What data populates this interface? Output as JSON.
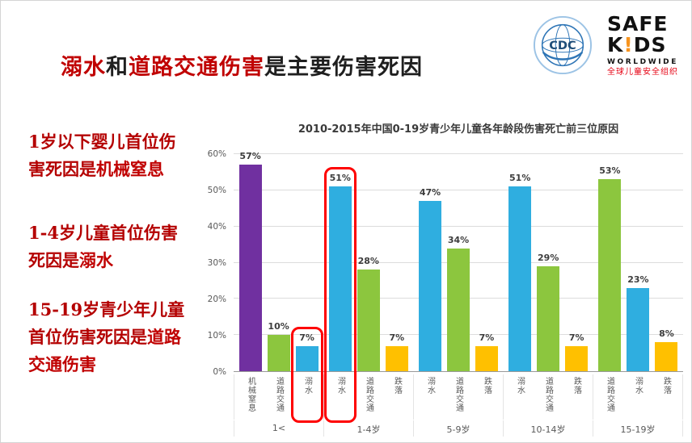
{
  "slide": {
    "title": {
      "p1": "溺水",
      "p2": "和",
      "p3": "道路交通伤害",
      "p4": "是主要伤害死因"
    }
  },
  "logos": {
    "cdc": {
      "label": "CDC"
    },
    "safekids": {
      "safe": "SAFE",
      "kids_k": "K",
      "kids_bang": "!",
      "kids_ds": "DS",
      "worldwide": "WORLDWIDE",
      "chinese": "全球儿童安全组织"
    }
  },
  "sidebar": {
    "notes": [
      {
        "pre": "1岁以下婴儿首位伤\n害死因是",
        "key": "机械窒息"
      },
      {
        "pre": "1-4岁儿童首位伤害\n死因是",
        "key": "溺水"
      },
      {
        "pre": "15-19岁青少年儿童\n首位伤害死因是",
        "key": "道路交通伤害"
      }
    ]
  },
  "chart_data": {
    "type": "bar",
    "title": "2010-2015年中国0-19岁青少年儿童各年龄段伤害死亡前三位原因",
    "xlabel": "",
    "ylabel": "",
    "unit": "%",
    "ylim": [
      0,
      60
    ],
    "yticks": [
      "0%",
      "10%",
      "20%",
      "30%",
      "40%",
      "50%",
      "60%"
    ],
    "grid": true,
    "legend_position": "none",
    "groups": [
      {
        "age": "1<",
        "bars": [
          {
            "label": "机械窒息",
            "value": 57,
            "color": "#7030A0",
            "highlight": false
          },
          {
            "label": "道路交通",
            "value": 10,
            "color": "#8CC63E",
            "highlight": false
          },
          {
            "label": "溺水",
            "value": 7,
            "color": "#2FAEE0",
            "highlight": true
          }
        ]
      },
      {
        "age": "1-4岁",
        "bars": [
          {
            "label": "溺水",
            "value": 51,
            "color": "#2FAEE0",
            "highlight": true
          },
          {
            "label": "道路交通",
            "value": 28,
            "color": "#8CC63E",
            "highlight": false
          },
          {
            "label": "跌落",
            "value": 7,
            "color": "#FFC000",
            "highlight": false
          }
        ]
      },
      {
        "age": "5-9岁",
        "bars": [
          {
            "label": "溺水",
            "value": 47,
            "color": "#2FAEE0",
            "highlight": false
          },
          {
            "label": "道路交通",
            "value": 34,
            "color": "#8CC63E",
            "highlight": false
          },
          {
            "label": "跌落",
            "value": 7,
            "color": "#FFC000",
            "highlight": false
          }
        ]
      },
      {
        "age": "10-14岁",
        "bars": [
          {
            "label": "溺水",
            "value": 51,
            "color": "#2FAEE0",
            "highlight": false
          },
          {
            "label": "道路交通",
            "value": 29,
            "color": "#8CC63E",
            "highlight": false
          },
          {
            "label": "跌落",
            "value": 7,
            "color": "#FFC000",
            "highlight": false
          }
        ]
      },
      {
        "age": "15-19岁",
        "bars": [
          {
            "label": "道路交通",
            "value": 53,
            "color": "#8CC63E",
            "highlight": false
          },
          {
            "label": "溺水",
            "value": 23,
            "color": "#2FAEE0",
            "highlight": false
          },
          {
            "label": "跌落",
            "value": 8,
            "color": "#FFC000",
            "highlight": false
          }
        ]
      }
    ]
  },
  "colors": {
    "title_red": "#C00000",
    "highlight_red": "#FE0000",
    "bar_purple": "#7030A0",
    "bar_green": "#8CC63E",
    "bar_blue": "#2FAEE0",
    "bar_orange": "#FFC000"
  }
}
